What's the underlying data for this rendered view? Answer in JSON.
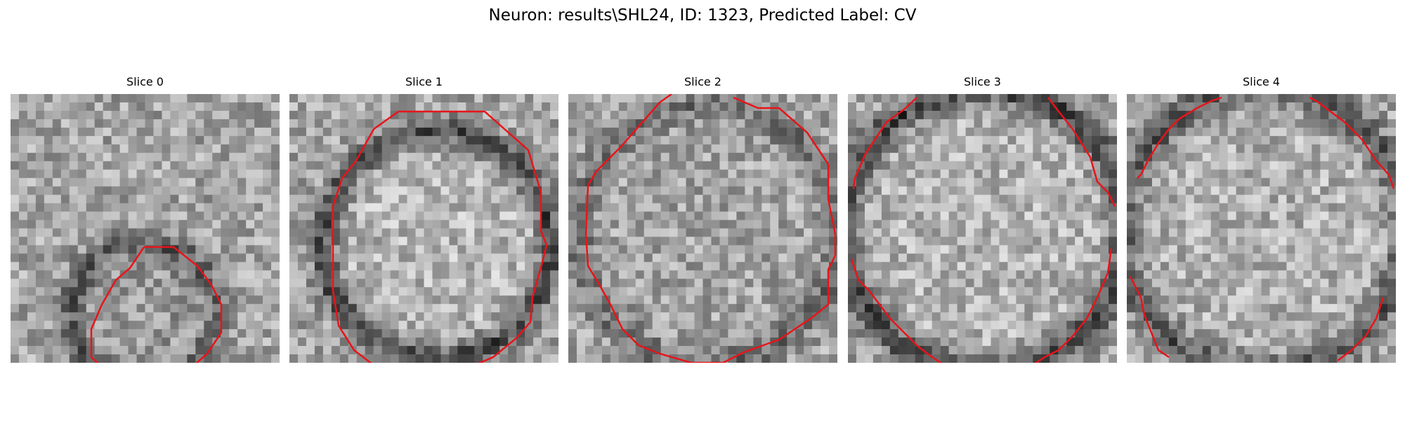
{
  "figure": {
    "title": "Neuron: results\\SHL24, ID: 1323, Predicted Label: CV"
  },
  "colors": {
    "contour": "#e8141a",
    "background": "#ffffff"
  },
  "panels": [
    {
      "title": "Slice 0"
    },
    {
      "title": "Slice 1"
    },
    {
      "title": "Slice 2"
    },
    {
      "title": "Slice 3"
    },
    {
      "title": "Slice 4"
    }
  ]
}
